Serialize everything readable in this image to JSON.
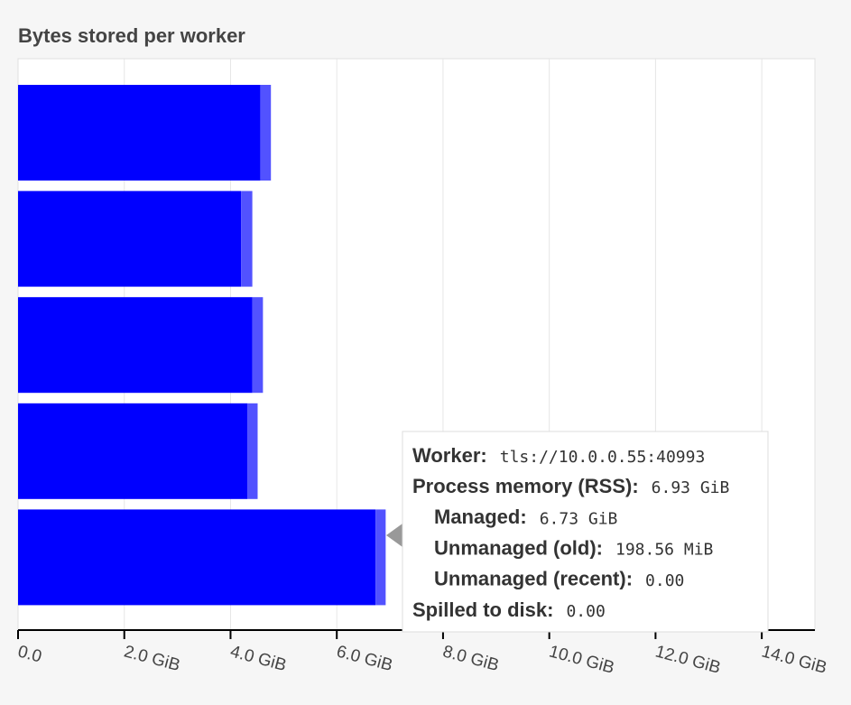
{
  "chart_data": {
    "type": "stacked-barh",
    "title": "Bytes stored per worker",
    "categories": [
      null,
      null,
      null,
      null,
      null
    ],
    "series": [
      {
        "color": "#0000ff",
        "values": [
          4.56,
          4.2,
          4.41,
          4.32,
          6.73
        ]
      },
      {
        "color": "#5252ff",
        "values": [
          0.2,
          0.21,
          0.2,
          0.19,
          0.19
        ]
      }
    ],
    "xlim": [
      0,
      15
    ],
    "xticks": [
      {
        "value": 0,
        "label": "0.0"
      },
      {
        "value": 2,
        "label": "2.0 GiB"
      },
      {
        "value": 4,
        "label": "4.0 GiB"
      },
      {
        "value": 6,
        "label": "6.0 GiB"
      },
      {
        "value": 8,
        "label": "8.0 GiB"
      },
      {
        "value": 10,
        "label": "10.0 GiB"
      },
      {
        "value": 12,
        "label": "12.0 GiB"
      },
      {
        "value": 14,
        "label": "14.0 GiB"
      }
    ],
    "grid": true,
    "tooltip": [
      {
        "label": "Worker:",
        "value": "tls://10.0.0.55:40993"
      },
      {
        "label": "Process memory (RSS):",
        "value": "6.93 GiB"
      },
      {
        "label": "Managed:",
        "value": "6.73 GiB"
      },
      {
        "label": "Unmanaged (old):",
        "value": "198.56 MiB"
      },
      {
        "label": "Unmanaged (recent):",
        "value": "0.00"
      },
      {
        "label": "Spilled to disk:",
        "value": "0.00"
      }
    ]
  }
}
